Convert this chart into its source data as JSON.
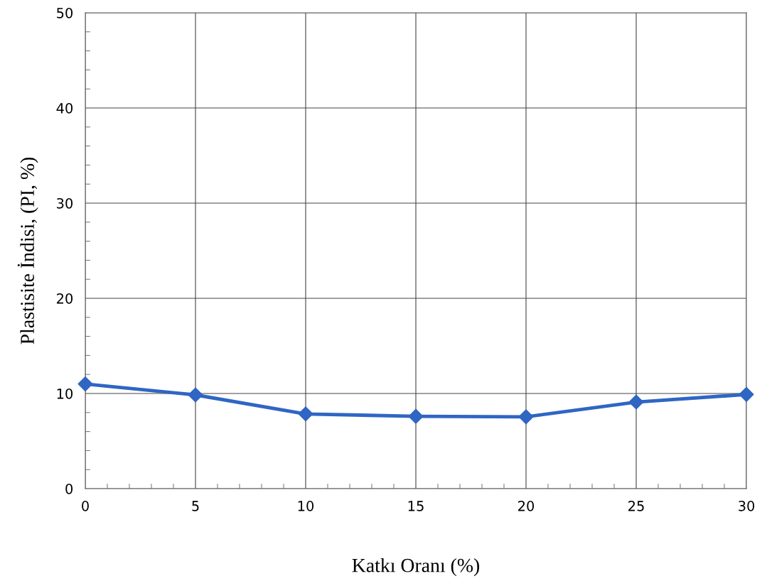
{
  "chart_data": {
    "type": "line",
    "xlabel": "Katkı Oranı (%)",
    "ylabel": "Plastisite İndisi, (PI, %)",
    "x": [
      0,
      5,
      10,
      15,
      20,
      25,
      30
    ],
    "series": [
      {
        "color": "#2f66c4",
        "values": [
          11.0,
          9.85,
          7.85,
          7.6,
          7.55,
          9.1,
          9.9
        ]
      }
    ],
    "xlim": [
      0,
      30
    ],
    "xticks": [
      0,
      5,
      10,
      15,
      20,
      25,
      30
    ],
    "ylim": [
      0,
      50
    ],
    "yticks": [
      0,
      10,
      20,
      30,
      40,
      50
    ],
    "grid": true,
    "marker": "diamond",
    "line_style": "solid"
  }
}
